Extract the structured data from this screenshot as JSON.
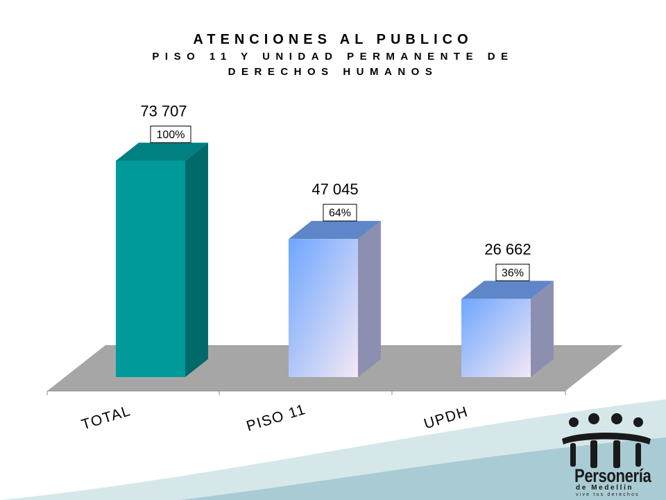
{
  "chart_data": {
    "type": "bar",
    "title": "ATENCIONES AL PUBLICO",
    "subtitle_lines": [
      "PISO 11 Y UNIDAD PERMANENTE DE",
      "DERECHOS HUMANOS"
    ],
    "categories": [
      "TOTAL",
      "PISO 11",
      "UPDH"
    ],
    "values": [
      73707,
      47045,
      26662
    ],
    "value_labels": [
      "73 707",
      "47 045",
      "26 662"
    ],
    "percent_labels": [
      "100%",
      "64%",
      "36%"
    ],
    "ylim": [
      0,
      84000
    ],
    "grid": false,
    "legend": "none",
    "colors": {
      "total_front": "#009a9a",
      "total_side": "#006a6a",
      "total_top": "#008080",
      "bar_gradient_start": "#6ea6ff",
      "bar_gradient_end": "#f4e8f4",
      "bar_side": "#8c8fb0",
      "floor": "#a6a6a6"
    }
  },
  "logo": {
    "name": "Personería",
    "sub1": "de Medellín",
    "sub2": "vive tus derechos",
    "icon": "people-group-icon"
  }
}
